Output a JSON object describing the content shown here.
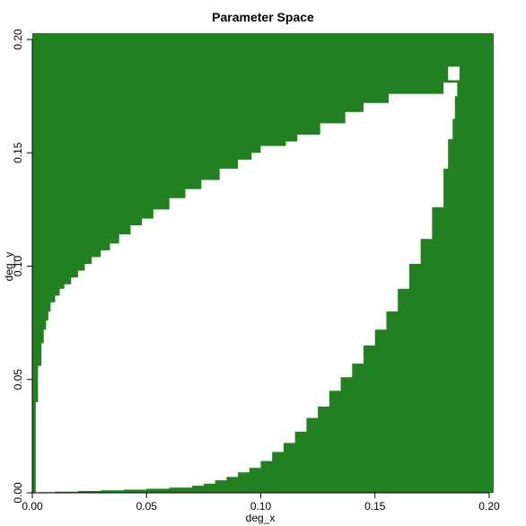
{
  "chart_data": {
    "type": "heatmap",
    "title": "Parameter Space",
    "xlabel": "deg_x",
    "ylabel": "deg_y",
    "xlim": [
      0.0,
      0.202
    ],
    "ylim": [
      0.0,
      0.202
    ],
    "xticks": [
      "0.00",
      "0.05",
      "0.10",
      "0.15",
      "0.20"
    ],
    "yticks": [
      "0.00",
      "0.05",
      "0.10",
      "0.15",
      "0.20"
    ],
    "fill_color": "#21801f",
    "background_color": "#ffffff",
    "upper_boundary": [
      [
        0.0011,
        0.0
      ],
      [
        0.0015,
        0.04
      ],
      [
        0.0025,
        0.056
      ],
      [
        0.004,
        0.066
      ],
      [
        0.005,
        0.072
      ],
      [
        0.006,
        0.076
      ],
      [
        0.007,
        0.08
      ],
      [
        0.008,
        0.084
      ],
      [
        0.01,
        0.087
      ],
      [
        0.012,
        0.09
      ],
      [
        0.014,
        0.092
      ],
      [
        0.017,
        0.095
      ],
      [
        0.02,
        0.098
      ],
      [
        0.023,
        0.101
      ],
      [
        0.026,
        0.104
      ],
      [
        0.03,
        0.107
      ],
      [
        0.034,
        0.11
      ],
      [
        0.038,
        0.114
      ],
      [
        0.043,
        0.118
      ],
      [
        0.048,
        0.121
      ],
      [
        0.053,
        0.125
      ],
      [
        0.06,
        0.13
      ],
      [
        0.067,
        0.134
      ],
      [
        0.074,
        0.138
      ],
      [
        0.082,
        0.143
      ],
      [
        0.09,
        0.147
      ],
      [
        0.096,
        0.15
      ],
      [
        0.1,
        0.153
      ],
      [
        0.111,
        0.155
      ],
      [
        0.116,
        0.158
      ],
      [
        0.126,
        0.163
      ],
      [
        0.137,
        0.168
      ],
      [
        0.145,
        0.172
      ],
      [
        0.156,
        0.176
      ],
      [
        0.18,
        0.181
      ]
    ],
    "lower_boundary": [
      [
        0.003,
        0.0003
      ],
      [
        0.01,
        0.0005
      ],
      [
        0.02,
        0.0008
      ],
      [
        0.03,
        0.0011
      ],
      [
        0.04,
        0.0014
      ],
      [
        0.05,
        0.0018
      ],
      [
        0.06,
        0.0023
      ],
      [
        0.07,
        0.0031
      ],
      [
        0.075,
        0.004
      ],
      [
        0.08,
        0.0055
      ],
      [
        0.085,
        0.007
      ],
      [
        0.09,
        0.009
      ],
      [
        0.095,
        0.011
      ],
      [
        0.1,
        0.014
      ],
      [
        0.105,
        0.018
      ],
      [
        0.11,
        0.022
      ],
      [
        0.115,
        0.027
      ],
      [
        0.12,
        0.033
      ],
      [
        0.125,
        0.038
      ],
      [
        0.13,
        0.045
      ],
      [
        0.135,
        0.051
      ],
      [
        0.14,
        0.057
      ],
      [
        0.145,
        0.065
      ],
      [
        0.15,
        0.072
      ],
      [
        0.155,
        0.08
      ],
      [
        0.16,
        0.09
      ],
      [
        0.165,
        0.101
      ],
      [
        0.17,
        0.112
      ],
      [
        0.175,
        0.126
      ],
      [
        0.18,
        0.143
      ],
      [
        0.182,
        0.156
      ],
      [
        0.184,
        0.165
      ],
      [
        0.185,
        0.175
      ],
      [
        0.186,
        0.181
      ]
    ],
    "hole": {
      "x": [
        0.182,
        0.187
      ],
      "y": [
        0.182,
        0.188
      ]
    }
  }
}
